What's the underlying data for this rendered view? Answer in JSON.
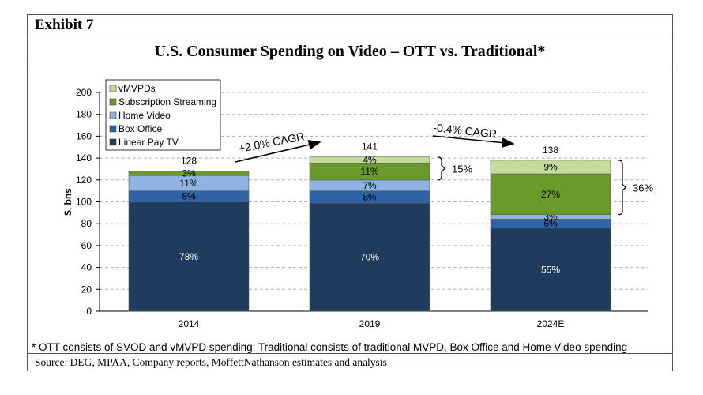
{
  "exhibit": {
    "label": "Exhibit 7",
    "title": "U.S. Consumer Spending on Video – OTT vs. Traditional*",
    "footnote": "* OTT consists of SVOD and vMVPD spending; Traditional consists of traditional MVPD, Box Office and Home Video spending",
    "source": "Source: DEG, MPAA, Company reports, MoffettNathanson estimates and analysis"
  },
  "colors": {
    "linear_pay_tv": "#1f3c5e",
    "box_office": "#2e63a6",
    "home_video": "#8db4e2",
    "subscription_streaming": "#6a9a2a",
    "vmvpds": "#c3dc9c",
    "grid": "#b0b0b0"
  },
  "chart_data": {
    "type": "bar",
    "stacked": true,
    "categories": [
      "2014",
      "2019",
      "2024E"
    ],
    "ylabel": "$, bns",
    "ylim": [
      0,
      200
    ],
    "yticks": [
      0,
      20,
      40,
      60,
      80,
      100,
      120,
      140,
      160,
      180,
      200
    ],
    "grid": true,
    "legend_position": "top-left",
    "series": [
      {
        "name": "Linear Pay TV",
        "color_key": "linear_pay_tv",
        "values": [
          99.8,
          98.7,
          75.9
        ],
        "labels": [
          "78%",
          "70%",
          "55%"
        ],
        "label_color": "#ffffff"
      },
      {
        "name": "Box Office",
        "color_key": "box_office",
        "values": [
          10.2,
          11.3,
          8.3
        ],
        "labels": [
          "8%",
          "8%",
          "6%"
        ],
        "label_color": "#000000"
      },
      {
        "name": "Home Video",
        "color_key": "home_video",
        "values": [
          14.1,
          9.9,
          4.1
        ],
        "labels": [
          "11%",
          "7%",
          "3%"
        ],
        "label_color": "#000000"
      },
      {
        "name": "Subscription Streaming",
        "color_key": "subscription_streaming",
        "values": [
          3.9,
          15.5,
          37.3
        ],
        "labels": [
          "3%",
          "11%",
          "27%"
        ],
        "label_color": "#000000"
      },
      {
        "name": "vMVPDs",
        "color_key": "vmvpds",
        "values": [
          0,
          5.6,
          12.4
        ],
        "labels": [
          "",
          "4%",
          "9%"
        ],
        "label_color": "#000000"
      }
    ],
    "totals": [
      "128",
      "141",
      "138"
    ],
    "annotations": {
      "cagr": [
        {
          "text": "+2.0% CAGR",
          "from": "2014",
          "to": "2019"
        },
        {
          "text": "-0.4% CAGR",
          "from": "2019",
          "to": "2024E"
        }
      ],
      "brackets": [
        {
          "category": "2019",
          "text": "15%"
        },
        {
          "category": "2024E",
          "text": "36%"
        }
      ]
    }
  }
}
